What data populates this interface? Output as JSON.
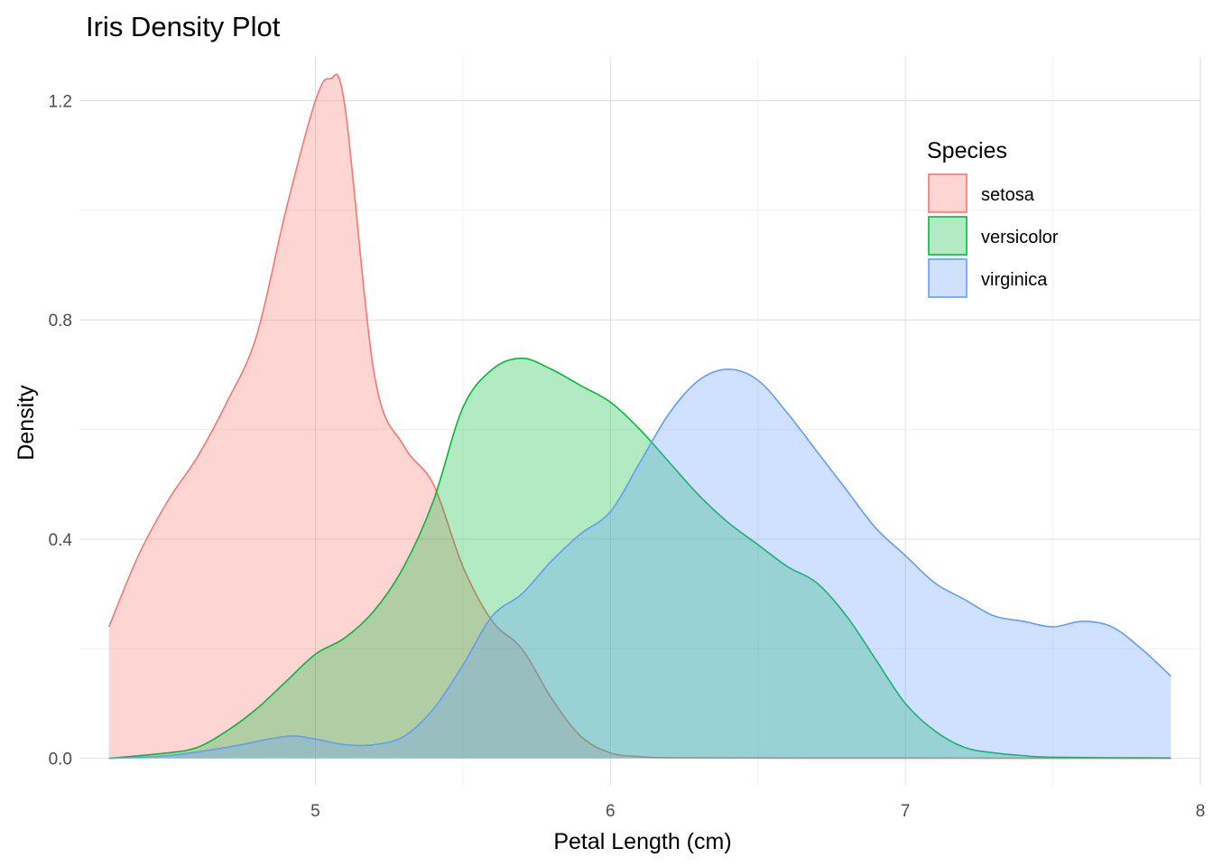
{
  "chart_data": {
    "type": "area",
    "title": "Iris Density Plot",
    "xlabel": "Petal Length (cm)",
    "ylabel": "Density",
    "xlim": [
      4.2,
      8.0
    ],
    "ylim": [
      -0.05,
      1.28
    ],
    "x_ticks": [
      5,
      6,
      7,
      8
    ],
    "x_tick_labels": [
      "5",
      "6",
      "7",
      "8"
    ],
    "y_ticks": [
      0.0,
      0.4,
      0.8,
      1.2
    ],
    "y_tick_labels": [
      "0.0",
      "0.4",
      "0.8",
      "1.2"
    ],
    "legend": {
      "title": "Species",
      "position": "top-right"
    },
    "series": [
      {
        "name": "setosa",
        "color": "#F8766D",
        "fill": "#F8766D",
        "x": [
          4.3,
          4.4,
          4.5,
          4.6,
          4.7,
          4.8,
          4.9,
          5.0,
          5.05,
          5.1,
          5.2,
          5.3,
          5.4,
          5.5,
          5.6,
          5.7,
          5.8,
          5.9,
          6.0,
          6.1,
          6.2,
          6.5,
          7.0,
          7.5,
          7.9
        ],
        "y": [
          0.24,
          0.37,
          0.47,
          0.55,
          0.65,
          0.77,
          1.0,
          1.2,
          1.24,
          1.19,
          0.7,
          0.57,
          0.5,
          0.35,
          0.25,
          0.2,
          0.11,
          0.04,
          0.01,
          0.003,
          0.001,
          0.0005,
          0.0003,
          0.0002,
          0.0001
        ]
      },
      {
        "name": "versicolor",
        "color": "#00BA38",
        "fill": "#00BA38",
        "x": [
          4.3,
          4.5,
          4.6,
          4.7,
          4.8,
          4.9,
          5.0,
          5.1,
          5.2,
          5.3,
          5.4,
          5.5,
          5.6,
          5.7,
          5.8,
          5.9,
          6.0,
          6.1,
          6.2,
          6.3,
          6.4,
          6.5,
          6.6,
          6.7,
          6.8,
          6.9,
          7.0,
          7.1,
          7.2,
          7.3,
          7.4,
          7.5,
          7.9
        ],
        "y": [
          0.0,
          0.01,
          0.02,
          0.05,
          0.09,
          0.14,
          0.19,
          0.22,
          0.27,
          0.35,
          0.47,
          0.64,
          0.71,
          0.73,
          0.71,
          0.68,
          0.65,
          0.6,
          0.54,
          0.48,
          0.43,
          0.39,
          0.35,
          0.32,
          0.26,
          0.18,
          0.1,
          0.05,
          0.02,
          0.01,
          0.005,
          0.002,
          0.0005
        ]
      },
      {
        "name": "virginica",
        "color": "#619CFF",
        "fill": "#619CFF",
        "x": [
          4.3,
          4.5,
          4.7,
          4.9,
          5.0,
          5.1,
          5.2,
          5.3,
          5.4,
          5.5,
          5.6,
          5.7,
          5.8,
          5.9,
          6.0,
          6.1,
          6.2,
          6.3,
          6.4,
          6.5,
          6.6,
          6.7,
          6.8,
          6.9,
          7.0,
          7.1,
          7.2,
          7.3,
          7.4,
          7.5,
          7.6,
          7.7,
          7.8,
          7.9
        ],
        "y": [
          0.0,
          0.005,
          0.02,
          0.04,
          0.035,
          0.025,
          0.025,
          0.04,
          0.09,
          0.17,
          0.26,
          0.3,
          0.36,
          0.41,
          0.45,
          0.54,
          0.63,
          0.69,
          0.71,
          0.69,
          0.63,
          0.56,
          0.49,
          0.42,
          0.37,
          0.32,
          0.29,
          0.26,
          0.25,
          0.24,
          0.25,
          0.24,
          0.2,
          0.15
        ]
      }
    ]
  }
}
